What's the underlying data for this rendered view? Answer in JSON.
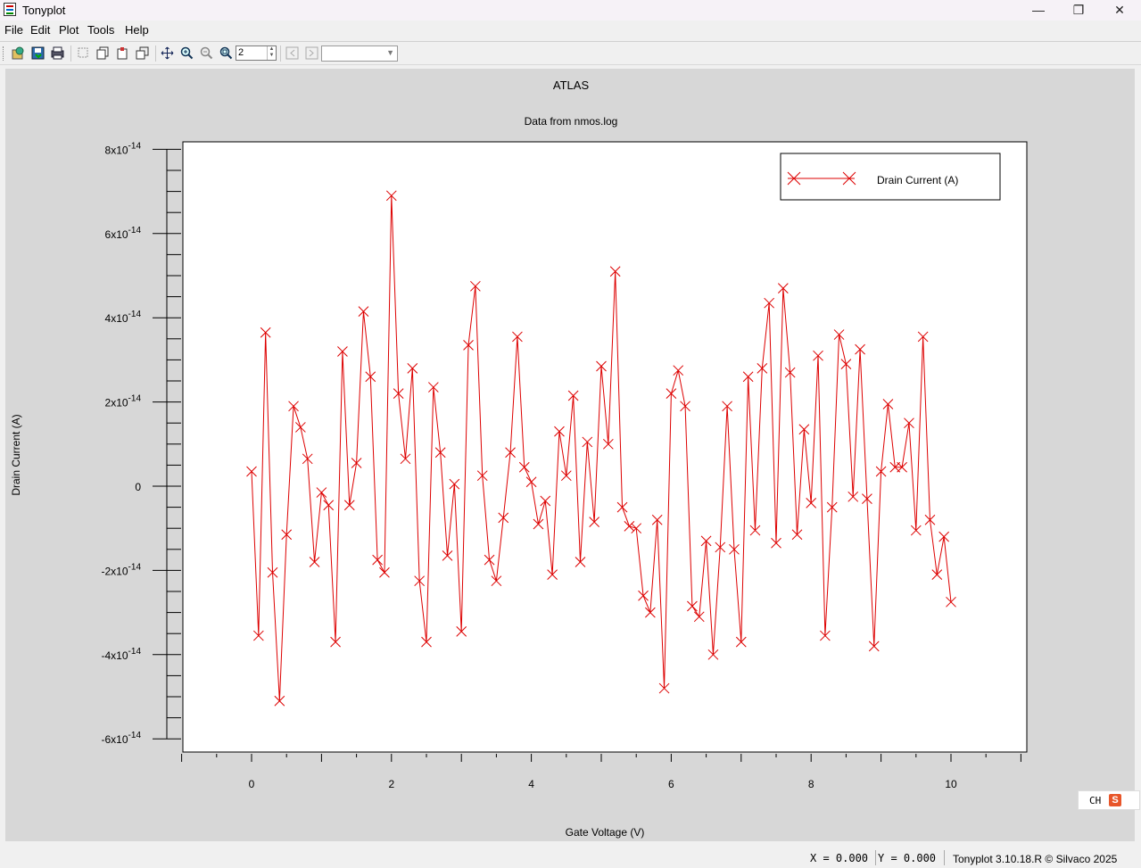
{
  "window": {
    "title": "Tonyplot",
    "controls": {
      "minimize": "—",
      "restore": "❐",
      "close": "✕"
    }
  },
  "menu": {
    "items": [
      "File",
      "Edit",
      "Plot",
      "Tools",
      "Help"
    ]
  },
  "toolbar": {
    "icons": [
      "load-icon",
      "save-icon",
      "print-icon",
      "select-icon",
      "copy-icon",
      "paste-icon",
      "duplicate-icon",
      "pan-icon",
      "zoom-in-icon",
      "zoom-out-icon",
      "zoom-fit-icon",
      "back-icon",
      "forward-icon"
    ],
    "zoom_value": "2",
    "combo_value": ""
  },
  "plot": {
    "title": "ATLAS",
    "subtitle": "Data from nmos.log",
    "legend": "Drain Current (A)"
  },
  "chart_data": {
    "type": "line",
    "title": "ATLAS",
    "subtitle": "Data from nmos.log",
    "xlabel": "Gate Voltage (V)",
    "ylabel": "Drain Current (A)",
    "xlim": [
      -1,
      11
    ],
    "ylim": [
      -6.5e-14,
      8.2e-14
    ],
    "x_ticks": [
      0,
      2,
      4,
      6,
      8,
      10
    ],
    "x_tick_labels": [
      "0",
      "2",
      "4",
      "6",
      "8",
      "10"
    ],
    "y_ticks": [
      8e-14,
      6e-14,
      4e-14,
      2e-14,
      0,
      -2e-14,
      -4e-14,
      -6e-14
    ],
    "y_tick_labels": [
      {
        "base": "8x10",
        "exp": "-14"
      },
      {
        "base": "6x10",
        "exp": "-14"
      },
      {
        "base": "4x10",
        "exp": "-14"
      },
      {
        "base": "2x10",
        "exp": "-14"
      },
      {
        "base": "0",
        "exp": ""
      },
      {
        "base": "-2x10",
        "exp": "-14"
      },
      {
        "base": "-4x10",
        "exp": "-14"
      },
      {
        "base": "-6x10",
        "exp": "-14"
      }
    ],
    "legend_position": "top-right",
    "series": [
      {
        "name": "Drain Current (A)",
        "color": "#dd0000",
        "marker": "x",
        "x": [
          0,
          0.1,
          0.2,
          0.3,
          0.4,
          0.5,
          0.6,
          0.7,
          0.8,
          0.9,
          1,
          1.1,
          1.2,
          1.3,
          1.4,
          1.5,
          1.6,
          1.7,
          1.8,
          1.9,
          2,
          2.1,
          2.2,
          2.3,
          2.4,
          2.5,
          2.6,
          2.7,
          2.8,
          2.9,
          3,
          3.1,
          3.2,
          3.3,
          3.4,
          3.5,
          3.6,
          3.7,
          3.8,
          3.9,
          4,
          4.1,
          4.2,
          4.3,
          4.4,
          4.5,
          4.6,
          4.7,
          4.8,
          4.9,
          5,
          5.1,
          5.2,
          5.3,
          5.4,
          5.5,
          5.6,
          5.7,
          5.8,
          5.9,
          6,
          6.1,
          6.2,
          6.3,
          6.4,
          6.5,
          6.6,
          6.7,
          6.8,
          6.9,
          7,
          7.1,
          7.2,
          7.3,
          7.4,
          7.5,
          7.6,
          7.7,
          7.8,
          7.9,
          8,
          8.1,
          8.2,
          8.3,
          8.4,
          8.5,
          8.6,
          8.7,
          8.8,
          8.9,
          9,
          9.1,
          9.2,
          9.3,
          9.4,
          9.5,
          9.6,
          9.7,
          9.8,
          9.9,
          10
        ],
        "y": [
          3.5e-15,
          -3.55e-14,
          3.65e-14,
          -2.05e-14,
          -5.1e-14,
          -1.15e-14,
          1.9e-14,
          1.4e-14,
          6.5e-15,
          -1.8e-14,
          -1.5e-15,
          -4.5e-15,
          -3.7e-14,
          3.2e-14,
          -4.5e-15,
          5.5e-15,
          4.15e-14,
          2.6e-14,
          -1.75e-14,
          -2.05e-14,
          6.9e-14,
          2.2e-14,
          6.5e-15,
          2.8e-14,
          -2.25e-14,
          -3.7e-14,
          2.35e-14,
          8e-15,
          -1.65e-14,
          5e-16,
          -3.45e-14,
          3.35e-14,
          4.75e-14,
          2.5e-15,
          -1.75e-14,
          -2.25e-14,
          -7.5e-15,
          8e-15,
          3.55e-14,
          4.5e-15,
          1e-15,
          -9e-15,
          -3.5e-15,
          -2.1e-14,
          1.3e-14,
          2.5e-15,
          2.15e-14,
          -1.8e-14,
          1.05e-14,
          -8.5e-15,
          2.85e-14,
          1e-14,
          5.1e-14,
          -5e-15,
          -9.5e-15,
          -1e-14,
          -2.6e-14,
          -3e-14,
          -8e-15,
          -4.8e-14,
          2.2e-14,
          2.75e-14,
          1.9e-14,
          -2.85e-14,
          -3.1e-14,
          -1.3e-14,
          -4e-14,
          -1.45e-14,
          1.9e-14,
          -1.5e-14,
          -3.7e-14,
          2.6e-14,
          -1.05e-14,
          2.8e-14,
          4.35e-14,
          -1.35e-14,
          4.7e-14,
          2.7e-14,
          -1.15e-14,
          1.35e-14,
          -4e-15,
          3.1e-14,
          -3.55e-14,
          -5e-15,
          3.6e-14,
          2.9e-14,
          -2.5e-15,
          3.25e-14,
          -3e-15,
          -3.8e-14,
          3.5e-15,
          1.95e-14,
          4.5e-15,
          4.5e-15,
          1.5e-14,
          -1.05e-14,
          3.55e-14,
          -8e-15,
          -2.1e-14,
          -1.2e-14,
          -2.75e-14
        ]
      }
    ]
  },
  "status": {
    "x_readout": "X = 0.000",
    "y_readout": "Y = 0.000",
    "version": "Tonyplot 3.10.18.R © Silvaco 2025"
  },
  "ime": {
    "lang": "CH",
    "logo": "S"
  }
}
